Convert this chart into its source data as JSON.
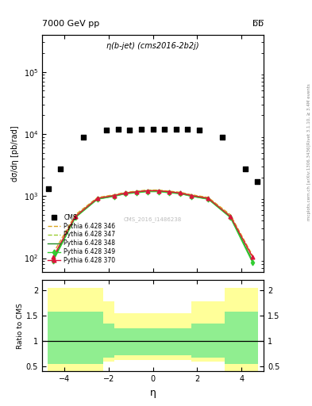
{
  "title_left": "7000 GeV pp",
  "title_right": "b̅b̅",
  "plot_title": "η(b-jet) (cms2016-2b2j)",
  "watermark": "CMS_2016_I1486238",
  "right_label": "Rivet 3.1.10, ≥ 3.4M events",
  "right_label2": "mcplots.cern.ch [arXiv:1306.3436]",
  "ylabel_main": "dσ/dη [pb/rad]",
  "ylabel_ratio": "Ratio to CMS",
  "xlabel": "η",
  "xlim": [
    -5.0,
    5.0
  ],
  "ylim_main": [
    60,
    400000
  ],
  "ylim_ratio": [
    0.4,
    2.2
  ],
  "ratio_yticks": [
    0.5,
    1.0,
    1.5,
    2.0
  ],
  "cms_eta": [
    -4.71,
    -4.19,
    -3.14,
    -2.09,
    -1.57,
    -1.05,
    -0.52,
    0.0,
    0.52,
    1.05,
    1.57,
    2.09,
    3.14,
    4.19,
    4.71
  ],
  "cms_values": [
    1300,
    2700,
    9000,
    11500,
    12000,
    11500,
    12000,
    12000,
    12000,
    12000,
    12000,
    11500,
    9000,
    2700,
    1700
  ],
  "py346_eta": [
    -4.5,
    -3.5,
    -2.5,
    -1.75,
    -1.25,
    -0.75,
    -0.25,
    0.25,
    0.75,
    1.25,
    1.75,
    2.5,
    3.5,
    4.5
  ],
  "py346_values": [
    120,
    500,
    950,
    1050,
    1150,
    1200,
    1250,
    1250,
    1200,
    1150,
    1050,
    950,
    500,
    110
  ],
  "py347_eta": [
    -4.5,
    -3.5,
    -2.5,
    -1.75,
    -1.25,
    -0.75,
    -0.25,
    0.25,
    0.75,
    1.25,
    1.75,
    2.5,
    3.5,
    4.5
  ],
  "py347_values": [
    100,
    480,
    930,
    1030,
    1130,
    1180,
    1230,
    1230,
    1180,
    1130,
    1030,
    930,
    480,
    100
  ],
  "py348_eta": [
    -4.5,
    -3.5,
    -2.5,
    -1.75,
    -1.25,
    -0.75,
    -0.25,
    0.25,
    0.75,
    1.25,
    1.75,
    2.5,
    3.5,
    4.5
  ],
  "py348_values": [
    95,
    460,
    900,
    1000,
    1100,
    1150,
    1200,
    1200,
    1150,
    1100,
    1000,
    900,
    460,
    90
  ],
  "py349_eta": [
    -4.5,
    -3.5,
    -2.5,
    -1.75,
    -1.25,
    -0.75,
    -0.25,
    0.25,
    0.75,
    1.25,
    1.75,
    2.5,
    3.5,
    4.5
  ],
  "py349_values": [
    90,
    450,
    890,
    990,
    1090,
    1130,
    1180,
    1180,
    1130,
    1090,
    990,
    890,
    450,
    85
  ],
  "py370_eta": [
    -4.5,
    -3.5,
    -2.5,
    -1.75,
    -1.25,
    -0.75,
    -0.25,
    0.25,
    0.75,
    1.25,
    1.75,
    2.5,
    3.5,
    4.5
  ],
  "py370_values": [
    105,
    470,
    920,
    1020,
    1120,
    1170,
    1220,
    1220,
    1170,
    1120,
    1020,
    920,
    470,
    105
  ],
  "color_346": "#DAA520",
  "color_347": "#9ACD32",
  "color_348": "#228B22",
  "color_349": "#32CD32",
  "color_370": "#DC143C",
  "ratio_yellow_top": [
    2.05,
    2.05,
    1.78,
    1.55,
    1.55,
    1.55,
    1.55,
    1.55,
    1.55,
    1.55,
    1.78,
    2.05,
    2.05
  ],
  "ratio_yellow_bot": [
    0.4,
    0.4,
    0.6,
    0.62,
    0.62,
    0.62,
    0.62,
    0.62,
    0.62,
    0.62,
    0.6,
    0.4,
    0.4
  ],
  "ratio_green_top": [
    1.58,
    1.58,
    1.35,
    1.25,
    1.25,
    1.25,
    1.25,
    1.25,
    1.25,
    1.25,
    1.35,
    1.58,
    1.58
  ],
  "ratio_green_bot": [
    0.55,
    0.55,
    0.68,
    0.72,
    0.72,
    0.72,
    0.72,
    0.72,
    0.72,
    0.72,
    0.68,
    0.55,
    0.55
  ],
  "ratio_band_edges": [
    -4.75,
    -3.25,
    -2.25,
    -1.75,
    -1.25,
    -0.75,
    -0.25,
    0.25,
    0.75,
    1.25,
    1.75,
    3.25,
    4.75
  ],
  "xticks": [
    -4,
    -2,
    0,
    2,
    4
  ]
}
